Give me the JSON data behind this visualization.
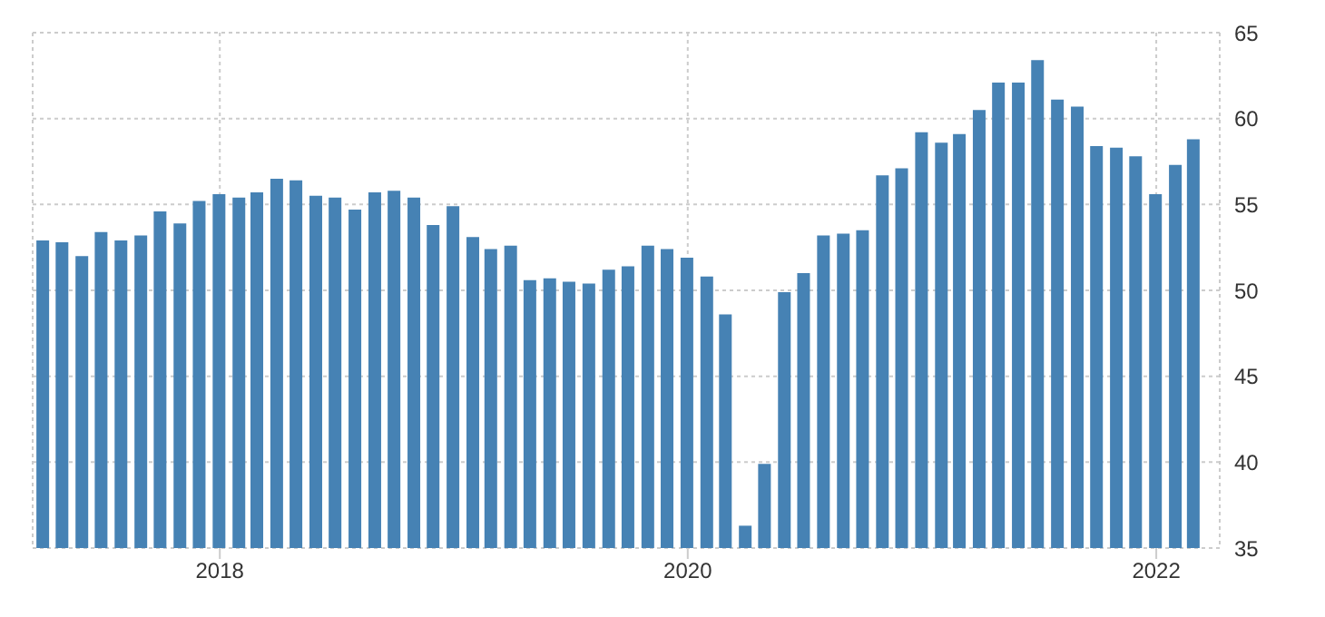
{
  "chart_data": {
    "type": "bar",
    "x": [
      "2017-04",
      "2017-05",
      "2017-06",
      "2017-07",
      "2017-08",
      "2017-09",
      "2017-10",
      "2017-11",
      "2017-12",
      "2018-01",
      "2018-02",
      "2018-03",
      "2018-04",
      "2018-05",
      "2018-06",
      "2018-07",
      "2018-08",
      "2018-09",
      "2018-10",
      "2018-11",
      "2018-12",
      "2019-01",
      "2019-02",
      "2019-03",
      "2019-04",
      "2019-05",
      "2019-06",
      "2019-07",
      "2019-08",
      "2019-09",
      "2019-10",
      "2019-11",
      "2019-12",
      "2020-01",
      "2020-02",
      "2020-03",
      "2020-04",
      "2020-05",
      "2020-06",
      "2020-07",
      "2020-08",
      "2020-09",
      "2020-10",
      "2020-11",
      "2020-12",
      "2021-01",
      "2021-02",
      "2021-03",
      "2021-04",
      "2021-05",
      "2021-06",
      "2021-07",
      "2021-08",
      "2021-09",
      "2021-10",
      "2021-11",
      "2021-12",
      "2022-01",
      "2022-02",
      "2022-03"
    ],
    "values": [
      52.9,
      52.8,
      52.0,
      53.4,
      52.9,
      53.2,
      54.6,
      53.9,
      55.2,
      55.6,
      55.4,
      55.7,
      56.5,
      56.4,
      55.5,
      55.4,
      54.7,
      55.7,
      55.8,
      55.4,
      53.8,
      54.9,
      53.1,
      52.4,
      52.6,
      50.6,
      50.7,
      50.5,
      50.4,
      51.2,
      51.4,
      52.6,
      52.4,
      51.9,
      50.8,
      48.6,
      36.3,
      39.9,
      49.9,
      51.0,
      53.2,
      53.3,
      53.5,
      56.7,
      57.1,
      59.2,
      58.6,
      59.1,
      60.5,
      62.1,
      62.1,
      63.4,
      61.1,
      60.7,
      58.4,
      58.3,
      57.8,
      55.6,
      57.3,
      58.8
    ],
    "color": "#4682b4",
    "xlim": [
      "2017-03-15",
      "2022-04-10"
    ],
    "xticks": [
      {
        "value": "2018-01",
        "label": "2018"
      },
      {
        "value": "2020-01",
        "label": "2020"
      },
      {
        "value": "2022-01",
        "label": "2022"
      }
    ],
    "ylim": [
      35,
      65
    ],
    "yticks": [
      35,
      40,
      45,
      50,
      55,
      60,
      65
    ],
    "grid": true
  }
}
